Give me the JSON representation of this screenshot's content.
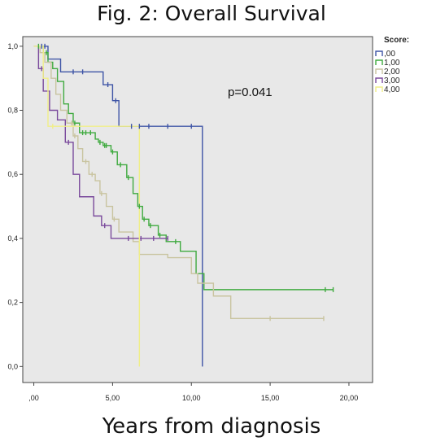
{
  "title": "Fig. 2: Overall Survival",
  "chart_data": {
    "type": "line",
    "subtype": "kaplan-meier step",
    "title": "Fig. 2: Overall Survival",
    "xlabel": "Years from diagnosis",
    "ylabel": "",
    "xlim": [
      -0.7,
      21.5
    ],
    "ylim": [
      -0.05,
      1.03
    ],
    "x_ticks": [
      0,
      5,
      10,
      15,
      20
    ],
    "x_tick_labels": [
      ",00",
      "5,00",
      "10,00",
      "15,00",
      "20,00"
    ],
    "y_ticks": [
      0,
      0.2,
      0.4,
      0.6,
      0.8,
      1.0
    ],
    "y_tick_labels": [
      "0,0",
      "0,2",
      "0,4",
      "0,6",
      "0,8",
      "1,0"
    ],
    "grid": false,
    "background": "#e8e8e8",
    "annotation": "p=0.041",
    "legend": {
      "title": "Score:",
      "placement": "right"
    },
    "series": [
      {
        "name": ",00",
        "color": "#3f55a6",
        "steps": [
          [
            0,
            1.0
          ],
          [
            0.9,
            0.96
          ],
          [
            1.7,
            0.92
          ],
          [
            4.4,
            0.88
          ],
          [
            5.0,
            0.83
          ],
          [
            5.4,
            0.75
          ],
          [
            10.7,
            0.0
          ]
        ],
        "censors": [
          [
            0.5,
            1.0
          ],
          [
            0.7,
            1.0
          ],
          [
            2.5,
            0.92
          ],
          [
            3.1,
            0.92
          ],
          [
            4.7,
            0.88
          ],
          [
            5.2,
            0.83
          ],
          [
            6.2,
            0.75
          ],
          [
            6.7,
            0.75
          ],
          [
            7.3,
            0.75
          ],
          [
            8.5,
            0.75
          ],
          [
            10.0,
            0.75
          ]
        ]
      },
      {
        "name": "1,00",
        "color": "#3faa3f",
        "steps": [
          [
            0,
            1.0
          ],
          [
            0.6,
            0.98
          ],
          [
            0.9,
            0.95
          ],
          [
            1.2,
            0.93
          ],
          [
            1.5,
            0.89
          ],
          [
            1.9,
            0.82
          ],
          [
            2.2,
            0.79
          ],
          [
            2.5,
            0.76
          ],
          [
            2.9,
            0.73
          ],
          [
            3.9,
            0.71
          ],
          [
            4.1,
            0.7
          ],
          [
            4.4,
            0.69
          ],
          [
            4.9,
            0.67
          ],
          [
            5.3,
            0.63
          ],
          [
            5.9,
            0.59
          ],
          [
            6.3,
            0.54
          ],
          [
            6.6,
            0.5
          ],
          [
            6.9,
            0.46
          ],
          [
            7.3,
            0.44
          ],
          [
            7.9,
            0.41
          ],
          [
            8.4,
            0.39
          ],
          [
            9.3,
            0.36
          ],
          [
            10.3,
            0.29
          ],
          [
            10.8,
            0.24
          ]
        ],
        "censors": [
          [
            0.3,
            1.0
          ],
          [
            0.8,
            0.98
          ],
          [
            2.6,
            0.76
          ],
          [
            3.1,
            0.73
          ],
          [
            3.3,
            0.73
          ],
          [
            3.6,
            0.73
          ],
          [
            4.2,
            0.7
          ],
          [
            4.5,
            0.69
          ],
          [
            4.6,
            0.69
          ],
          [
            5.0,
            0.67
          ],
          [
            5.5,
            0.63
          ],
          [
            6.0,
            0.59
          ],
          [
            6.7,
            0.5
          ],
          [
            7.0,
            0.46
          ],
          [
            7.4,
            0.44
          ],
          [
            8.0,
            0.41
          ],
          [
            9.0,
            0.39
          ],
          [
            18.5,
            0.24
          ],
          [
            19.0,
            0.24
          ]
        ]
      },
      {
        "name": "2,00",
        "color": "#c9c4a0",
        "steps": [
          [
            0,
            1.0
          ],
          [
            0.4,
            0.98
          ],
          [
            0.7,
            0.95
          ],
          [
            1.1,
            0.9
          ],
          [
            1.4,
            0.85
          ],
          [
            1.7,
            0.8
          ],
          [
            2.1,
            0.76
          ],
          [
            2.5,
            0.72
          ],
          [
            2.8,
            0.68
          ],
          [
            3.1,
            0.64
          ],
          [
            3.5,
            0.6
          ],
          [
            3.9,
            0.58
          ],
          [
            4.2,
            0.54
          ],
          [
            4.6,
            0.5
          ],
          [
            5.0,
            0.46
          ],
          [
            5.4,
            0.42
          ],
          [
            6.3,
            0.39
          ],
          [
            6.7,
            0.35
          ],
          [
            8.5,
            0.34
          ],
          [
            10.0,
            0.29
          ],
          [
            10.4,
            0.26
          ],
          [
            11.4,
            0.22
          ],
          [
            12.5,
            0.15
          ]
        ],
        "censors": [
          [
            2.4,
            0.76
          ],
          [
            2.6,
            0.72
          ],
          [
            3.3,
            0.64
          ],
          [
            3.7,
            0.6
          ],
          [
            4.3,
            0.54
          ],
          [
            5.1,
            0.46
          ],
          [
            15.0,
            0.15
          ],
          [
            18.4,
            0.15
          ]
        ]
      },
      {
        "name": "3,00",
        "color": "#7a4a9c",
        "steps": [
          [
            0,
            1.0
          ],
          [
            0.3,
            0.93
          ],
          [
            0.6,
            0.86
          ],
          [
            1.0,
            0.8
          ],
          [
            1.5,
            0.77
          ],
          [
            2.0,
            0.7
          ],
          [
            2.5,
            0.6
          ],
          [
            2.9,
            0.53
          ],
          [
            3.8,
            0.47
          ],
          [
            4.3,
            0.44
          ],
          [
            4.9,
            0.4
          ]
        ],
        "censors": [
          [
            0.5,
            0.93
          ],
          [
            2.2,
            0.7
          ],
          [
            4.5,
            0.44
          ],
          [
            6.0,
            0.4
          ],
          [
            6.8,
            0.4
          ],
          [
            7.6,
            0.4
          ],
          [
            8.5,
            0.4
          ]
        ]
      },
      {
        "name": "4,00",
        "color": "#f0ee88",
        "steps": [
          [
            0,
            1.0
          ],
          [
            0.6,
            0.9
          ],
          [
            0.9,
            0.75
          ],
          [
            6.7,
            0.0
          ]
        ],
        "censors": [
          [
            1.2,
            0.75
          ]
        ]
      }
    ]
  }
}
